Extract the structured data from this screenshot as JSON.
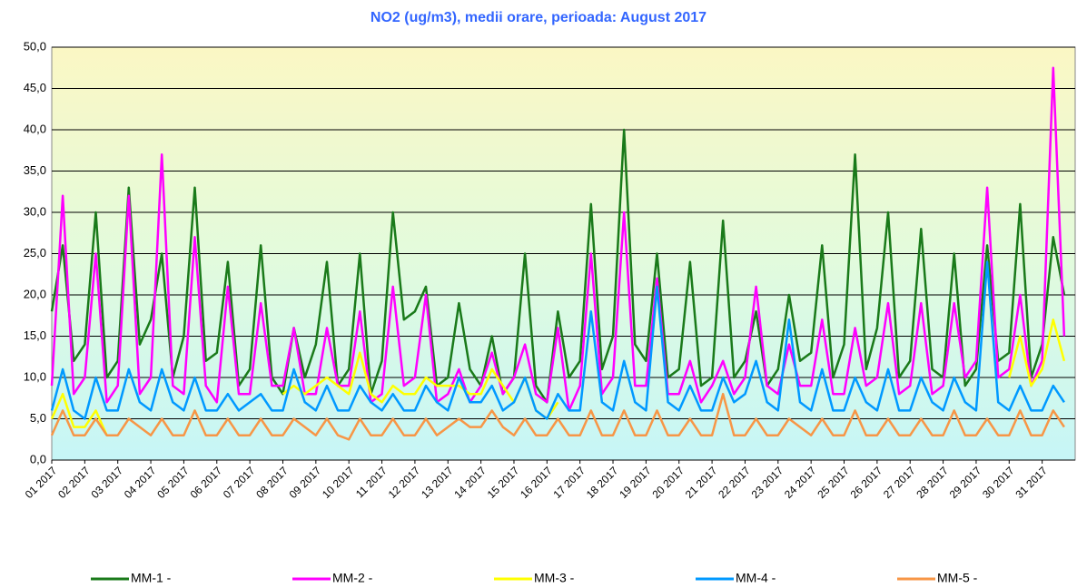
{
  "chart_data": {
    "type": "line",
    "title": "NO2 (ug/m3), medii orare, perioada: August 2017",
    "x": [
      0,
      8,
      16,
      24,
      32,
      40,
      48,
      56,
      64,
      72,
      80,
      88,
      96,
      104,
      112,
      120,
      128,
      136,
      144,
      152,
      160,
      168,
      176,
      184,
      192,
      200,
      208,
      216,
      224,
      232,
      240,
      248,
      256,
      264,
      272,
      280,
      288,
      296,
      304,
      312,
      320,
      328,
      336,
      344,
      352,
      360,
      368,
      376,
      384,
      392,
      400,
      408,
      416,
      424,
      432,
      440,
      448,
      456,
      464,
      472,
      480,
      488,
      496,
      504,
      512,
      520,
      528,
      536,
      544,
      552,
      560,
      568,
      576,
      584,
      592,
      600,
      608,
      616,
      624,
      632,
      640,
      648,
      656,
      664,
      672,
      680,
      688,
      696,
      704,
      712,
      720,
      728,
      736
    ],
    "xlim": [
      0,
      744
    ],
    "xticks": [
      {
        "value": 0,
        "label": "01 2017"
      },
      {
        "value": 24,
        "label": "02 2017"
      },
      {
        "value": 48,
        "label": "03 2017"
      },
      {
        "value": 72,
        "label": "04 2017"
      },
      {
        "value": 96,
        "label": "05 2017"
      },
      {
        "value": 120,
        "label": "06 2017"
      },
      {
        "value": 144,
        "label": "07 2017"
      },
      {
        "value": 168,
        "label": "08 2017"
      },
      {
        "value": 192,
        "label": "09 2017"
      },
      {
        "value": 216,
        "label": "10 2017"
      },
      {
        "value": 240,
        "label": "11 2017"
      },
      {
        "value": 264,
        "label": "12 2017"
      },
      {
        "value": 288,
        "label": "13 2017"
      },
      {
        "value": 312,
        "label": "14 2017"
      },
      {
        "value": 336,
        "label": "15 2017"
      },
      {
        "value": 360,
        "label": "16 2017"
      },
      {
        "value": 384,
        "label": "17 2017"
      },
      {
        "value": 408,
        "label": "18 2017"
      },
      {
        "value": 432,
        "label": "19 2017"
      },
      {
        "value": 456,
        "label": "20 2017"
      },
      {
        "value": 480,
        "label": "21 2017"
      },
      {
        "value": 504,
        "label": "22 2017"
      },
      {
        "value": 528,
        "label": "23 2017"
      },
      {
        "value": 552,
        "label": "24 2017"
      },
      {
        "value": 576,
        "label": "25 2017"
      },
      {
        "value": 600,
        "label": "26 2017"
      },
      {
        "value": 624,
        "label": "27 2017"
      },
      {
        "value": 648,
        "label": "28 2017"
      },
      {
        "value": 672,
        "label": "29 2017"
      },
      {
        "value": 696,
        "label": "30 2017"
      },
      {
        "value": 720,
        "label": "31 2017"
      }
    ],
    "ylim": [
      0,
      50
    ],
    "yticks": [
      {
        "value": 0,
        "label": "0,0"
      },
      {
        "value": 5,
        "label": "5,0"
      },
      {
        "value": 10,
        "label": "10,0"
      },
      {
        "value": 15,
        "label": "15,0"
      },
      {
        "value": 20,
        "label": "20,0"
      },
      {
        "value": 25,
        "label": "25,0"
      },
      {
        "value": 30,
        "label": "30,0"
      },
      {
        "value": 35,
        "label": "35,0"
      },
      {
        "value": 40,
        "label": "40,0"
      },
      {
        "value": 45,
        "label": "45,0"
      },
      {
        "value": 50,
        "label": "50,0"
      }
    ],
    "grid": true,
    "series": [
      {
        "name": "MM-1 -",
        "color": "#1a7a1a",
        "values": [
          18,
          26,
          12,
          14,
          30,
          10,
          12,
          33,
          14,
          17,
          25,
          10,
          15,
          33,
          12,
          13,
          24,
          9,
          11,
          26,
          10,
          8,
          16,
          10,
          14,
          24,
          9,
          11,
          25,
          8,
          12,
          30,
          17,
          18,
          21,
          9,
          10,
          19,
          11,
          9,
          15,
          8,
          10,
          25,
          9,
          7,
          18,
          10,
          12,
          31,
          11,
          15,
          40,
          14,
          12,
          25,
          10,
          11,
          24,
          9,
          10,
          29,
          10,
          12,
          18,
          9,
          11,
          20,
          12,
          13,
          26,
          10,
          14,
          37,
          11,
          16,
          30,
          10,
          12,
          28,
          11,
          10,
          25,
          9,
          11,
          26,
          12,
          13,
          31,
          10,
          14,
          27,
          20
        ]
      },
      {
        "name": "MM-2 -",
        "color": "#ff00ff",
        "values": [
          9,
          32,
          8,
          10,
          25,
          7,
          9,
          32,
          8,
          10,
          37,
          9,
          8,
          27,
          9,
          7,
          21,
          8,
          8,
          19,
          9,
          9,
          16,
          8,
          8,
          16,
          9,
          9,
          18,
          7,
          8,
          21,
          9,
          10,
          20,
          7,
          8,
          11,
          7,
          9,
          13,
          8,
          10,
          14,
          8,
          7,
          16,
          6,
          9,
          25,
          8,
          10,
          30,
          9,
          9,
          22,
          8,
          8,
          12,
          7,
          9,
          12,
          8,
          10,
          21,
          9,
          8,
          14,
          9,
          9,
          17,
          8,
          8,
          16,
          9,
          10,
          19,
          8,
          9,
          19,
          8,
          9,
          19,
          10,
          12,
          33,
          10,
          11,
          20,
          9,
          12,
          47.5,
          15
        ]
      },
      {
        "name": "MM-3 -",
        "color": "#ffff00",
        "values": [
          5,
          8,
          4,
          4,
          6,
          3,
          null,
          null,
          null,
          null,
          null,
          null,
          null,
          null,
          null,
          null,
          null,
          null,
          null,
          null,
          null,
          8,
          9,
          8,
          9,
          10,
          9,
          8,
          13,
          8,
          7,
          9,
          8,
          8,
          10,
          9,
          9,
          9,
          8,
          8,
          11,
          9,
          7,
          10,
          6,
          5,
          7,
          null,
          null,
          null,
          null,
          null,
          null,
          null,
          null,
          null,
          null,
          null,
          null,
          null,
          null,
          null,
          null,
          null,
          null,
          null,
          null,
          null,
          null,
          null,
          null,
          null,
          null,
          null,
          null,
          null,
          null,
          null,
          null,
          null,
          null,
          null,
          null,
          null,
          null,
          null,
          null,
          10,
          15,
          9,
          11,
          17,
          12
        ]
      },
      {
        "name": "MM-4 -",
        "color": "#0099ff",
        "values": [
          6,
          11,
          6,
          5,
          10,
          6,
          6,
          11,
          7,
          6,
          11,
          7,
          6,
          10,
          6,
          6,
          8,
          6,
          7,
          8,
          6,
          6,
          11,
          7,
          6,
          9,
          6,
          6,
          9,
          7,
          6,
          8,
          6,
          6,
          9,
          7,
          6,
          10,
          7,
          7,
          9,
          6,
          7,
          10,
          6,
          5,
          8,
          6,
          6,
          18,
          7,
          6,
          12,
          7,
          6,
          21,
          7,
          6,
          9,
          6,
          6,
          10,
          7,
          8,
          12,
          7,
          6,
          17,
          7,
          6,
          11,
          6,
          6,
          10,
          7,
          6,
          11,
          6,
          6,
          10,
          7,
          6,
          10,
          7,
          6,
          24,
          7,
          6,
          9,
          6,
          6,
          9,
          7
        ]
      },
      {
        "name": "MM-5 -",
        "color": "#f79646",
        "values": [
          3,
          6,
          3,
          3,
          5,
          3,
          3,
          5,
          4,
          3,
          5,
          3,
          3,
          6,
          3,
          3,
          5,
          3,
          3,
          5,
          3,
          3,
          5,
          4,
          3,
          5,
          3,
          2.5,
          5,
          3,
          3,
          5,
          3,
          3,
          5,
          3,
          4,
          5,
          4,
          4,
          6,
          4,
          3,
          5,
          3,
          3,
          5,
          3,
          3,
          6,
          3,
          3,
          6,
          3,
          3,
          6,
          3,
          3,
          5,
          3,
          3,
          8,
          3,
          3,
          5,
          3,
          3,
          5,
          4,
          3,
          5,
          3,
          3,
          6,
          3,
          3,
          5,
          3,
          3,
          5,
          3,
          3,
          6,
          3,
          3,
          5,
          3,
          3,
          6,
          3,
          3,
          6,
          4
        ]
      }
    ]
  }
}
